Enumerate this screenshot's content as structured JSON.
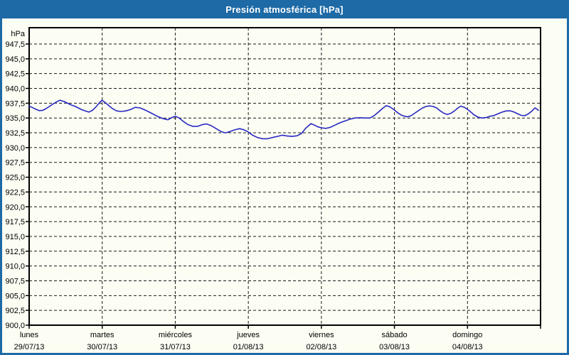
{
  "window": {
    "title": "Presión atmosférica [hPa]"
  },
  "colors": {
    "frame_blue": "#1d6aa6",
    "title_text": "#ffffff",
    "panel_bg": "#fcfdf3",
    "grid_line": "#1a1a1a",
    "axis_border": "#000000",
    "tick_label": "#000000",
    "series_line": "#2828c4"
  },
  "chart_data": {
    "type": "line",
    "title": "Presión atmosférica [hPa]",
    "ylabel": "hPa",
    "xlabel": "",
    "legend": "none",
    "grid": "dashed",
    "ylim": [
      900.0,
      950.3
    ],
    "y_tick_step": 2.5,
    "y_tick_values": [
      947.5,
      945.0,
      942.5,
      940.0,
      937.5,
      935.0,
      932.5,
      930.0,
      927.5,
      925.0,
      922.5,
      920.0,
      917.5,
      915.0,
      912.5,
      910.0,
      907.5,
      905.0,
      902.5,
      900.0
    ],
    "y_tick_labels": [
      "947,5",
      "945,0",
      "942,5",
      "940,0",
      "937,5",
      "935,0",
      "932,5",
      "930,0",
      "927,5",
      "925,0",
      "922,5",
      "920,0",
      "917,5",
      "915,0",
      "912,5",
      "910,0",
      "907,5",
      "905,0",
      "902,5",
      "900,0"
    ],
    "x_days": [
      {
        "name": "lunes",
        "date": "29/07/13"
      },
      {
        "name": "martes",
        "date": "30/07/13"
      },
      {
        "name": "miércoles",
        "date": "31/07/13"
      },
      {
        "name": "jueves",
        "date": "01/08/13"
      },
      {
        "name": "viernes",
        "date": "02/08/13"
      },
      {
        "name": "sábado",
        "date": "03/08/13"
      },
      {
        "name": "domingo",
        "date": "04/08/13"
      }
    ],
    "x_range_days": 7,
    "series": [
      {
        "name": "Presión atmosférica",
        "unit": "hPa",
        "points": [
          [
            0.0,
            937.0
          ],
          [
            0.039,
            936.8
          ],
          [
            0.088,
            936.5
          ],
          [
            0.136,
            936.25
          ],
          [
            0.185,
            936.3
          ],
          [
            0.234,
            936.6
          ],
          [
            0.282,
            937.0
          ],
          [
            0.331,
            937.4
          ],
          [
            0.38,
            937.75
          ],
          [
            0.419,
            938.0
          ],
          [
            0.477,
            937.8
          ],
          [
            0.526,
            937.5
          ],
          [
            0.574,
            937.2
          ],
          [
            0.623,
            937.0
          ],
          [
            0.672,
            936.7
          ],
          [
            0.72,
            936.4
          ],
          [
            0.769,
            936.2
          ],
          [
            0.818,
            936.0
          ],
          [
            0.866,
            936.3
          ],
          [
            0.915,
            936.9
          ],
          [
            0.964,
            937.6
          ],
          [
            0.998,
            938.0
          ],
          [
            1.042,
            937.6
          ],
          [
            1.09,
            937.1
          ],
          [
            1.139,
            936.6
          ],
          [
            1.197,
            936.2
          ],
          [
            1.256,
            936.1
          ],
          [
            1.324,
            936.2
          ],
          [
            1.392,
            936.45
          ],
          [
            1.451,
            936.8
          ],
          [
            1.519,
            936.7
          ],
          [
            1.597,
            936.3
          ],
          [
            1.675,
            935.8
          ],
          [
            1.752,
            935.3
          ],
          [
            1.83,
            934.9
          ],
          [
            1.898,
            934.7
          ],
          [
            1.957,
            935.1
          ],
          [
            2.001,
            935.3
          ],
          [
            2.054,
            935.0
          ],
          [
            2.113,
            934.4
          ],
          [
            2.171,
            933.9
          ],
          [
            2.239,
            933.6
          ],
          [
            2.307,
            933.6
          ],
          [
            2.375,
            933.9
          ],
          [
            2.424,
            934.0
          ],
          [
            2.492,
            933.7
          ],
          [
            2.56,
            933.2
          ],
          [
            2.629,
            932.7
          ],
          [
            2.687,
            932.5
          ],
          [
            2.745,
            932.7
          ],
          [
            2.814,
            933.0
          ],
          [
            2.882,
            933.2
          ],
          [
            2.94,
            933.0
          ],
          [
            2.999,
            932.65
          ],
          [
            3.057,
            932.1
          ],
          [
            3.125,
            931.7
          ],
          [
            3.193,
            931.5
          ],
          [
            3.262,
            931.5
          ],
          [
            3.33,
            931.7
          ],
          [
            3.398,
            931.9
          ],
          [
            3.466,
            932.1
          ],
          [
            3.534,
            931.95
          ],
          [
            3.602,
            931.9
          ],
          [
            3.67,
            932.0
          ],
          [
            3.729,
            932.4
          ],
          [
            3.787,
            933.3
          ],
          [
            3.826,
            933.7
          ],
          [
            3.856,
            934.05
          ],
          [
            3.904,
            933.8
          ],
          [
            3.953,
            933.5
          ],
          [
            4.002,
            933.35
          ],
          [
            4.06,
            933.25
          ],
          [
            4.118,
            933.4
          ],
          [
            4.186,
            933.8
          ],
          [
            4.255,
            934.2
          ],
          [
            4.323,
            934.5
          ],
          [
            4.391,
            934.8
          ],
          [
            4.459,
            935.0
          ],
          [
            4.527,
            935.05
          ],
          [
            4.595,
            935.0
          ],
          [
            4.664,
            935.0
          ],
          [
            4.722,
            935.4
          ],
          [
            4.78,
            936.0
          ],
          [
            4.839,
            936.65
          ],
          [
            4.887,
            937.1
          ],
          [
            4.936,
            936.9
          ],
          [
            4.994,
            936.4
          ],
          [
            5.043,
            935.9
          ],
          [
            5.092,
            935.5
          ],
          [
            5.14,
            935.3
          ],
          [
            5.179,
            935.2
          ],
          [
            5.228,
            935.4
          ],
          [
            5.277,
            935.8
          ],
          [
            5.335,
            936.3
          ],
          [
            5.384,
            936.7
          ],
          [
            5.432,
            936.95
          ],
          [
            5.481,
            937.05
          ],
          [
            5.53,
            936.95
          ],
          [
            5.578,
            936.7
          ],
          [
            5.627,
            936.2
          ],
          [
            5.676,
            935.8
          ],
          [
            5.724,
            935.6
          ],
          [
            5.773,
            935.8
          ],
          [
            5.822,
            936.2
          ],
          [
            5.87,
            936.7
          ],
          [
            5.909,
            937.0
          ],
          [
            5.958,
            936.8
          ],
          [
            6.007,
            936.4
          ],
          [
            6.046,
            936.0
          ],
          [
            6.094,
            935.5
          ],
          [
            6.143,
            935.15
          ],
          [
            6.201,
            935.0
          ],
          [
            6.26,
            935.1
          ],
          [
            6.308,
            935.3
          ],
          [
            6.357,
            935.4
          ],
          [
            6.416,
            935.7
          ],
          [
            6.474,
            936.0
          ],
          [
            6.532,
            936.2
          ],
          [
            6.591,
            936.2
          ],
          [
            6.639,
            936.0
          ],
          [
            6.688,
            935.7
          ],
          [
            6.737,
            935.45
          ],
          [
            6.786,
            935.4
          ],
          [
            6.834,
            935.7
          ],
          [
            6.883,
            936.2
          ],
          [
            6.922,
            936.7
          ],
          [
            6.951,
            936.5
          ],
          [
            6.971,
            936.3
          ]
        ]
      }
    ]
  }
}
